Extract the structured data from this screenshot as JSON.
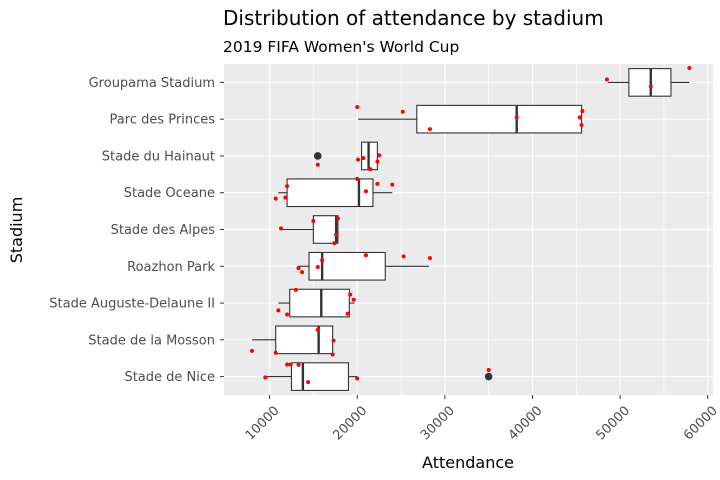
{
  "chart_data": {
    "type": "boxplot",
    "title": "Distribution of attendance by stadium",
    "subtitle": "2019 FIFA Women's World Cup",
    "xlabel": "Attendance",
    "ylabel": "Stadium",
    "xlim": [
      4800,
      60600
    ],
    "x_ticks": [
      10000,
      20000,
      30000,
      40000,
      50000,
      60000
    ],
    "x_tick_labels": [
      "10000",
      "20000",
      "30000",
      "40000",
      "50000",
      "60000"
    ],
    "grid": true,
    "orientation": "horizontal",
    "colors": {
      "panel": "#ebebeb",
      "grid": "#ffffff",
      "box_fill": "#ffffff",
      "box_line": "#333333",
      "points": "#ff0000",
      "outlier": "#333333"
    },
    "categories": [
      "Groupama Stadium",
      "Parc des Princes",
      "Stade du Hainaut",
      "Stade Oceane",
      "Stade des Alpes",
      "Roazhon Park",
      "Stade Auguste-Delaune II",
      "Stade de la Mosson",
      "Stade de Nice"
    ],
    "boxes": [
      {
        "stadium": "Groupama Stadium",
        "whisker_low": 48600,
        "q1": 51000,
        "median": 53500,
        "q3": 55800,
        "whisker_high": 57900,
        "outliers": [],
        "points": [
          [
            48500,
            -0.08
          ],
          [
            53500,
            0.11
          ],
          [
            57900,
            -0.39
          ]
        ]
      },
      {
        "stadium": "Parc des Princes",
        "whisker_low": 20100,
        "q1": 26800,
        "median": 38200,
        "q3": 45600,
        "whisker_high": 45600,
        "outliers": [],
        "points": [
          [
            20000,
            -0.33
          ],
          [
            25200,
            -0.2
          ],
          [
            28300,
            0.27
          ],
          [
            38200,
            -0.05
          ],
          [
            45400,
            -0.05
          ],
          [
            45600,
            0.16
          ],
          [
            45700,
            -0.22
          ]
        ]
      },
      {
        "stadium": "Stade du Hainaut",
        "whisker_low": 20500,
        "q1": 20500,
        "median": 21300,
        "q3": 22300,
        "whisker_high": 22300,
        "outliers": [
          15500
        ],
        "points": [
          [
            15500,
            0.24
          ],
          [
            20100,
            0.1
          ],
          [
            20700,
            0.06
          ],
          [
            21500,
            0.36
          ],
          [
            22300,
            0.15
          ],
          [
            22500,
            -0.02
          ]
        ]
      },
      {
        "stadium": "Stade Oceane",
        "whisker_low": 11000,
        "q1": 12000,
        "median": 20200,
        "q3": 21800,
        "whisker_high": 24000,
        "outliers": [],
        "points": [
          [
            10700,
            0.16
          ],
          [
            11800,
            0.13
          ],
          [
            12000,
            -0.18
          ],
          [
            20000,
            -0.38
          ],
          [
            21000,
            -0.04
          ],
          [
            22300,
            -0.24
          ],
          [
            24000,
            -0.22
          ]
        ]
      },
      {
        "stadium": "Stade des Alpes",
        "whisker_low": 11300,
        "q1": 15000,
        "median": 17600,
        "q3": 17800,
        "whisker_high": 17800,
        "outliers": [],
        "points": [
          [
            11300,
            -0.03
          ],
          [
            15000,
            -0.23
          ],
          [
            17400,
            0.37
          ],
          [
            17600,
            0.14
          ],
          [
            17800,
            -0.3
          ]
        ]
      },
      {
        "stadium": "Roazhon Park",
        "whisker_low": 13200,
        "q1": 14500,
        "median": 16000,
        "q3": 23200,
        "whisker_high": 28200,
        "outliers": [],
        "points": [
          [
            13300,
            0.05
          ],
          [
            13700,
            0.16
          ],
          [
            15500,
            0.02
          ],
          [
            16000,
            -0.16
          ],
          [
            21000,
            -0.3
          ],
          [
            25300,
            -0.27
          ],
          [
            28300,
            -0.22
          ]
        ]
      },
      {
        "stadium": "Stade Auguste-Delaune II",
        "whisker_low": 11000,
        "q1": 12300,
        "median": 15900,
        "q3": 19100,
        "whisker_high": 19700,
        "outliers": [],
        "points": [
          [
            11000,
            0.2
          ],
          [
            12000,
            0.31
          ],
          [
            13000,
            -0.36
          ],
          [
            18900,
            0.29
          ],
          [
            19200,
            -0.23
          ],
          [
            19600,
            -0.09
          ]
        ]
      },
      {
        "stadium": "Stade de la Mosson",
        "whisker_low": 8000,
        "q1": 10700,
        "median": 15600,
        "q3": 17200,
        "whisker_high": 17200,
        "outliers": [],
        "points": [
          [
            8000,
            0.3
          ],
          [
            10700,
            0.35
          ],
          [
            15500,
            -0.27
          ],
          [
            17200,
            0.4
          ],
          [
            17300,
            0.02
          ]
        ]
      },
      {
        "stadium": "Stade de Nice",
        "whisker_low": 9500,
        "q1": 12500,
        "median": 13800,
        "q3": 19000,
        "whisker_high": 20000,
        "outliers": [
          35000
        ],
        "points": [
          [
            9500,
            0.02
          ],
          [
            12000,
            -0.33
          ],
          [
            12400,
            -0.33
          ],
          [
            13300,
            -0.32
          ],
          [
            14400,
            0.15
          ],
          [
            20000,
            0.05
          ],
          [
            35000,
            -0.18
          ]
        ]
      }
    ]
  }
}
